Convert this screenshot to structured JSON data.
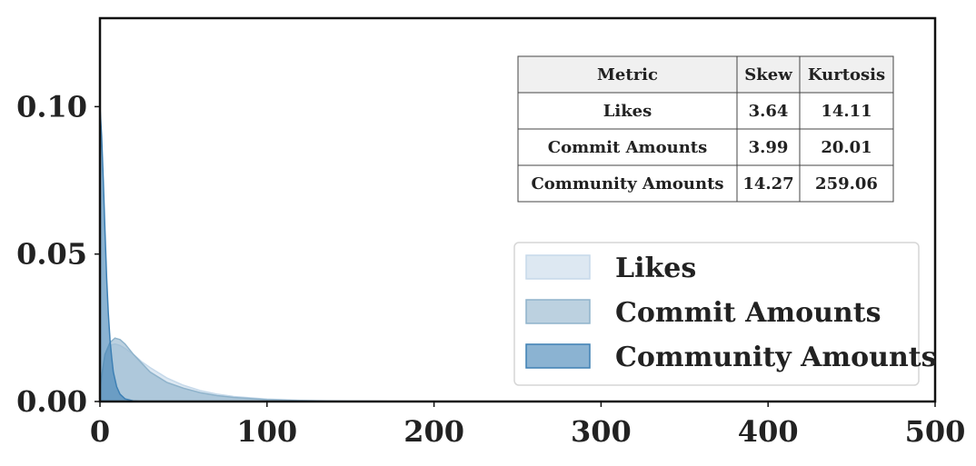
{
  "chart_data": {
    "type": "area",
    "title": "",
    "xlabel": "",
    "ylabel": "",
    "xlim": [
      0,
      500
    ],
    "ylim": [
      0,
      0.13
    ],
    "x_ticks": [
      0,
      100,
      200,
      300,
      400,
      500
    ],
    "y_ticks": [
      0.0,
      0.05,
      0.1
    ],
    "x_tick_labels": [
      "0",
      "100",
      "200",
      "300",
      "400",
      "500"
    ],
    "y_tick_labels": [
      "0.00",
      "0.05",
      "0.10"
    ],
    "grid": false,
    "legend_position": "lower-right",
    "series": [
      {
        "name": "Likes",
        "color": "#c6d9ea",
        "x": [
          0,
          3,
          6,
          9,
          12,
          15,
          20,
          25,
          30,
          40,
          50,
          60,
          70,
          80,
          100,
          120,
          140,
          160,
          200,
          250,
          300
        ],
        "y": [
          0.003,
          0.016,
          0.019,
          0.0195,
          0.019,
          0.018,
          0.016,
          0.0135,
          0.0115,
          0.008,
          0.0055,
          0.0037,
          0.0025,
          0.0017,
          0.0008,
          0.0004,
          0.0002,
          0.0001,
          2e-05,
          0.0,
          0.0
        ]
      },
      {
        "name": "Commit Amounts",
        "color": "#8fb3cb",
        "x": [
          0,
          3,
          6,
          9,
          12,
          15,
          20,
          25,
          30,
          40,
          50,
          60,
          70,
          80,
          100,
          120,
          140,
          160,
          200,
          250,
          300
        ],
        "y": [
          0.005,
          0.016,
          0.02,
          0.0215,
          0.021,
          0.0195,
          0.016,
          0.013,
          0.01,
          0.0065,
          0.0045,
          0.003,
          0.002,
          0.0014,
          0.0006,
          0.0003,
          0.00015,
          0.0001,
          0.0,
          0.0,
          0.0
        ]
      },
      {
        "name": "Community Amounts",
        "color": "#3e80b4",
        "x": [
          0,
          1,
          2,
          3,
          4,
          5,
          6,
          7,
          8,
          10,
          12,
          15,
          20,
          25,
          30,
          40,
          60,
          100,
          200,
          300
        ],
        "y": [
          0.1,
          0.09,
          0.075,
          0.058,
          0.042,
          0.03,
          0.021,
          0.015,
          0.01,
          0.005,
          0.0025,
          0.0009,
          0.0002,
          5e-05,
          0.0,
          0.0,
          0.0,
          0.0,
          0.0,
          0.0
        ]
      }
    ],
    "stats_table": {
      "headers": [
        "Metric",
        "Skew",
        "Kurtosis"
      ],
      "rows": [
        [
          "Likes",
          "3.64",
          "14.11"
        ],
        [
          "Commit Amounts",
          "3.99",
          "20.01"
        ],
        [
          "Community Amounts",
          "14.27",
          "259.06"
        ]
      ]
    },
    "colors": {
      "axis": "#111111",
      "table_header_bg": "#f0f0f0",
      "table_border": "#444444",
      "legend_border": "#d6d6d6"
    }
  }
}
